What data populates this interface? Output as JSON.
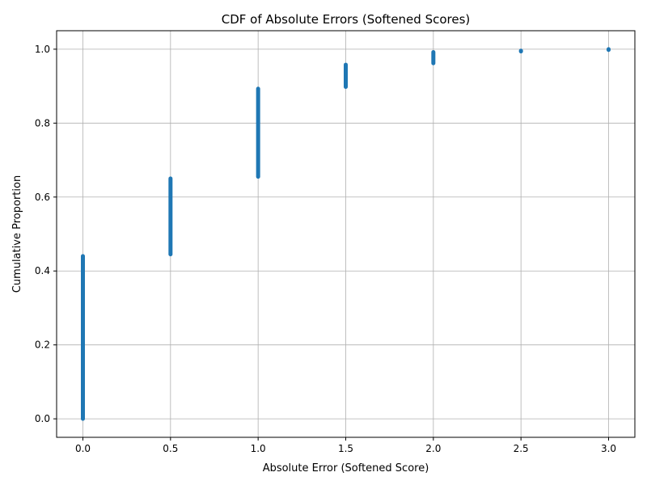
{
  "chart_data": {
    "type": "scatter",
    "title": "CDF of Absolute Errors (Softened Scores)",
    "xlabel": "Absolute Error (Softened Score)",
    "ylabel": "Cumulative Proportion",
    "xlim": [
      -0.15,
      3.15
    ],
    "ylim": [
      -0.05,
      1.05
    ],
    "xticks": [
      0.0,
      0.5,
      1.0,
      1.5,
      2.0,
      2.5,
      3.0
    ],
    "xtick_labels": [
      "0.0",
      "0.5",
      "1.0",
      "1.5",
      "2.0",
      "2.5",
      "3.0"
    ],
    "yticks": [
      0.0,
      0.2,
      0.4,
      0.6,
      0.8,
      1.0
    ],
    "ytick_labels": [
      "0.0",
      "0.2",
      "0.4",
      "0.6",
      "0.8",
      "1.0"
    ],
    "grid": true,
    "color": "#1f77b4",
    "groups": [
      {
        "x": 0.0,
        "y_start": 0.0,
        "y_end": 0.44
      },
      {
        "x": 0.5,
        "y_start": 0.445,
        "y_end": 0.65
      },
      {
        "x": 1.0,
        "y_start": 0.655,
        "y_end": 0.893
      },
      {
        "x": 1.5,
        "y_start": 0.898,
        "y_end": 0.958
      },
      {
        "x": 2.0,
        "y_start": 0.962,
        "y_end": 0.992
      },
      {
        "x": 2.5,
        "y_start": 0.994,
        "y_end": 0.996
      },
      {
        "x": 3.0,
        "y_start": 0.998,
        "y_end": 1.0
      }
    ]
  }
}
